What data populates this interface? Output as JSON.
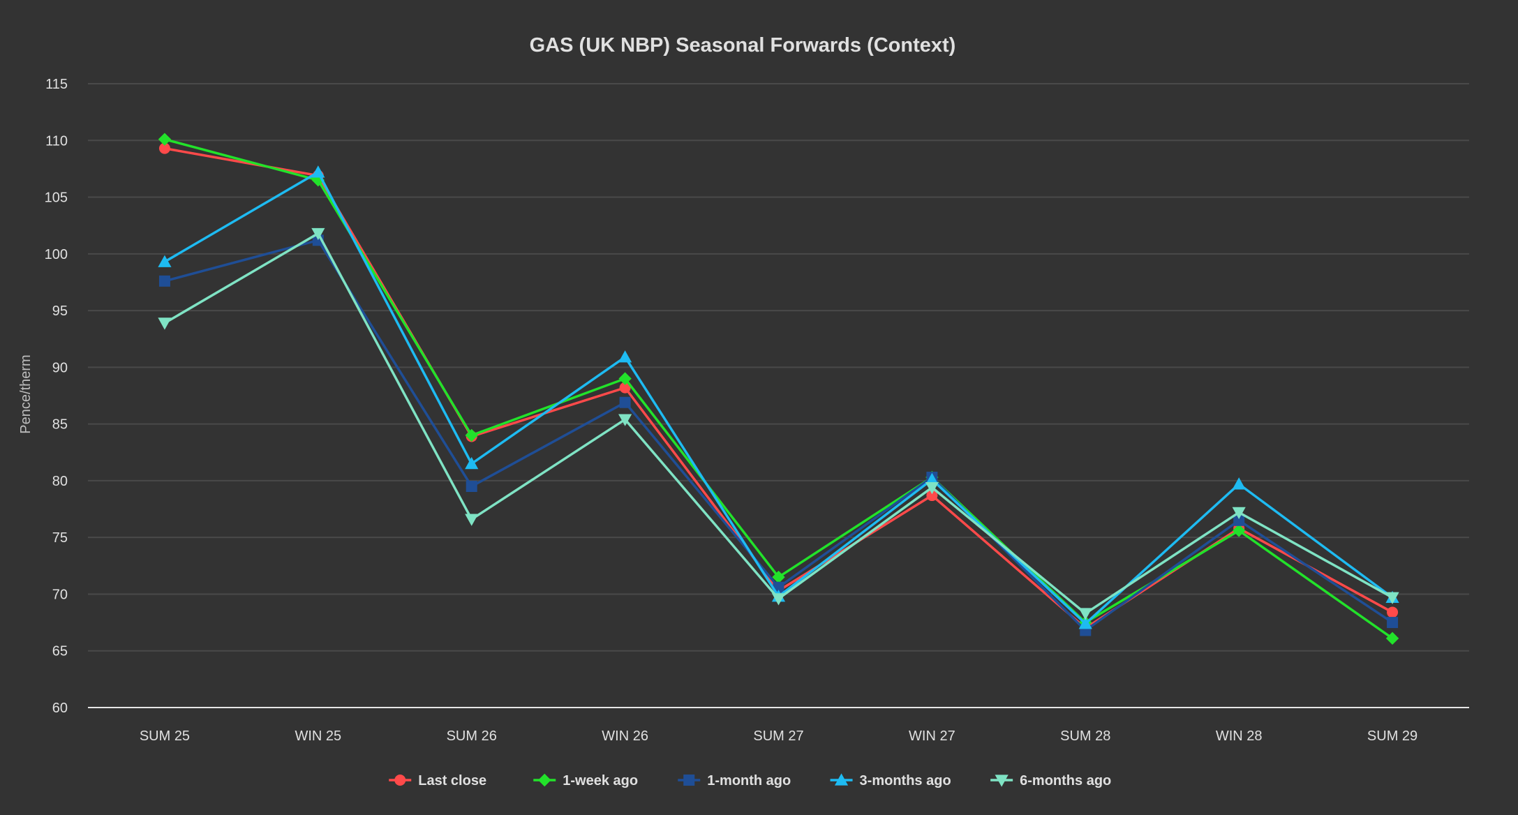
{
  "chart_data": {
    "type": "line",
    "title": "GAS (UK NBP) Seasonal Forwards (Context)",
    "xlabel": "",
    "ylabel": "Pence/therm",
    "ylim": [
      60,
      115
    ],
    "yticks": [
      60,
      65,
      70,
      75,
      80,
      85,
      90,
      95,
      100,
      105,
      110,
      115
    ],
    "grid": true,
    "legend_position": "bottom",
    "categories": [
      "SUM 25",
      "WIN 25",
      "SUM 26",
      "WIN 26",
      "SUM 27",
      "WIN 27",
      "SUM 28",
      "WIN 28",
      "SUM 29"
    ],
    "colors": {
      "background": "#333333",
      "grid": "#4a4a4a",
      "axis": "#e6e6e6",
      "text": "#e0e0e0"
    },
    "series": [
      {
        "name": "Last close",
        "color": "#ff4a4a",
        "marker": "circle",
        "values": [
          109.3,
          106.9,
          83.9,
          88.2,
          70.3,
          78.7,
          67.0,
          75.8,
          68.4
        ]
      },
      {
        "name": "1-week ago",
        "color": "#22e22a",
        "marker": "diamond",
        "values": [
          110.1,
          106.5,
          84.0,
          89.0,
          71.5,
          80.3,
          67.5,
          75.6,
          66.1
        ]
      },
      {
        "name": "1-month ago",
        "color": "#1f4e96",
        "marker": "square",
        "values": [
          97.6,
          101.2,
          79.5,
          86.9,
          70.6,
          80.3,
          66.8,
          76.5,
          67.5
        ]
      },
      {
        "name": "3-months ago",
        "color": "#1ebbf2",
        "marker": "triangle-up",
        "values": [
          99.3,
          107.2,
          81.5,
          90.9,
          69.8,
          80.1,
          67.4,
          79.7,
          69.7
        ]
      },
      {
        "name": "6-months ago",
        "color": "#7fe3c4",
        "marker": "triangle-down",
        "values": [
          93.9,
          101.8,
          76.6,
          85.4,
          69.6,
          79.4,
          68.3,
          77.2,
          69.7
        ]
      }
    ]
  }
}
